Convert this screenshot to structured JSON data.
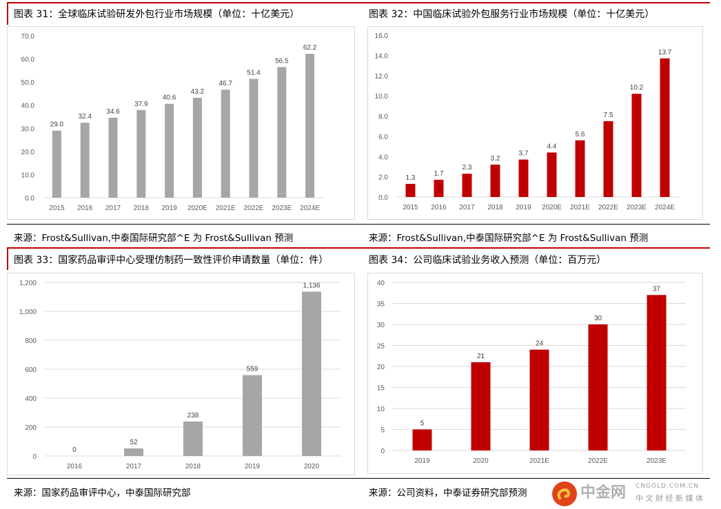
{
  "colors": {
    "gray": "#a6a6a6",
    "red": "#c00000"
  },
  "chart_data": [
    {
      "type": "bar",
      "title": "图表 31：全球临床试验研发外包行业市场规模（单位：十亿美元）",
      "categories": [
        "2015",
        "2016",
        "2017",
        "2018",
        "2019",
        "2020E",
        "2021E",
        "2022E",
        "2023E",
        "2024E"
      ],
      "values": [
        29.0,
        32.4,
        34.6,
        37.9,
        40.6,
        43.2,
        46.7,
        51.4,
        56.5,
        62.2
      ],
      "labels": [
        "29.0",
        "32.4",
        "34.6",
        "37.9",
        "40.6",
        "43.2",
        "46.7",
        "51.4",
        "56.5",
        "62.2"
      ],
      "ylim": [
        0,
        70
      ],
      "yticks": [
        "0.0",
        "10.0",
        "20.0",
        "30.0",
        "40.0",
        "50.0",
        "60.0",
        "70.0"
      ],
      "color": "gray",
      "source": "来源：Frost&Sullivan,中泰国际研究部^E 为 Frost&Sullivan 预测"
    },
    {
      "type": "bar",
      "title": "图表 32：中国临床试验外包服务行业市场规模（单位：十亿美元）",
      "categories": [
        "2015",
        "2016",
        "2017",
        "2018",
        "2019",
        "2020E",
        "2021E",
        "2022E",
        "2023E",
        "2024E"
      ],
      "values": [
        1.3,
        1.7,
        2.3,
        3.2,
        3.7,
        4.4,
        5.6,
        7.5,
        10.2,
        13.7
      ],
      "labels": [
        "1.3",
        "1.7",
        "2.3",
        "3.2",
        "3.7",
        "4.4",
        "5.6",
        "7.5",
        "10.2",
        "13.7"
      ],
      "ylim": [
        0,
        16
      ],
      "yticks": [
        "0.0",
        "2.0",
        "4.0",
        "6.0",
        "8.0",
        "10.0",
        "12.0",
        "14.0",
        "16.0"
      ],
      "color": "red",
      "source": "来源：Frost&Sullivan,中泰国际研究部^E 为 Frost&Sullivan 预测"
    },
    {
      "type": "bar",
      "title": "图表 33：国家药品审评中心受理仿制药一致性评价申请数量（单位：件）",
      "categories": [
        "2016",
        "2017",
        "2018",
        "2019",
        "2020"
      ],
      "values": [
        0,
        52,
        238,
        559,
        1136
      ],
      "labels": [
        "0",
        "52",
        "238",
        "559",
        "1,136"
      ],
      "ylim": [
        0,
        1200
      ],
      "yticks": [
        "0",
        "200",
        "400",
        "600",
        "800",
        "1,000",
        "1,200"
      ],
      "color": "gray",
      "source": "来源：国家药品审评中心，中泰国际研究部"
    },
    {
      "type": "bar",
      "title": "图表 34：公司临床试验业务收入预测（单位：百万元）",
      "categories": [
        "2019",
        "2020",
        "2021E",
        "2022E",
        "2023E"
      ],
      "values": [
        5,
        21,
        24,
        30,
        37
      ],
      "labels": [
        "5",
        "21",
        "24",
        "30",
        "37"
      ],
      "ylim": [
        0,
        40
      ],
      "yticks": [
        "0",
        "5",
        "10",
        "15",
        "20",
        "25",
        "30",
        "35",
        "40"
      ],
      "color": "red",
      "source": "来源：公司资料，中泰证券研究部预测"
    }
  ],
  "watermark": {
    "name": "中金网",
    "url": "CNGOLD.COM.CN",
    "tagline": "中 文 财 经 新 媒 体"
  }
}
